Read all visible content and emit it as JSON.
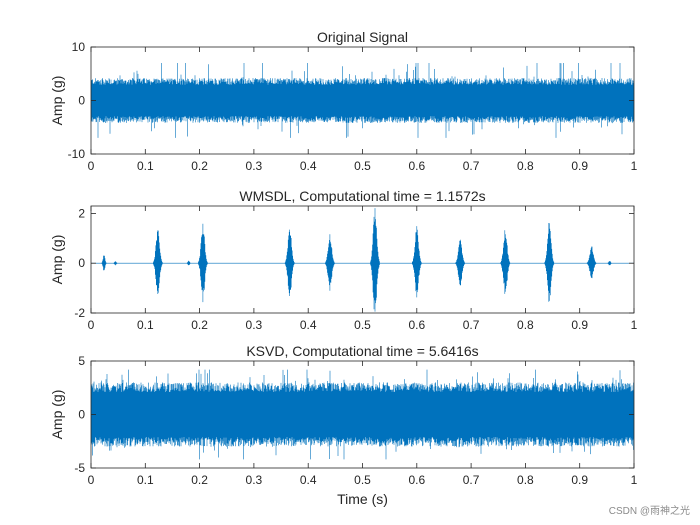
{
  "chart_data": [
    {
      "type": "line",
      "title": "Original Signal",
      "xlabel": "",
      "ylabel": "Amp (g)",
      "xlim": [
        0,
        1
      ],
      "ylim": [
        -10,
        10
      ],
      "xticks": [
        "0",
        "0.1",
        "0.2",
        "0.3",
        "0.4",
        "0.5",
        "0.6",
        "0.7",
        "0.8",
        "0.9",
        "1"
      ],
      "yticks": [
        "-10",
        "0",
        "10"
      ],
      "ytick_values": [
        -10,
        0,
        10
      ],
      "grid": false,
      "color": "#0072BD",
      "series": [
        {
          "name": "original",
          "description": "dense broadband vibration signal, amplitude mostly within ±5 g, peaks near ±7 g"
        }
      ],
      "envelope": {
        "typical_amplitude": 4.2,
        "peak_amplitude": 7
      }
    },
    {
      "type": "line",
      "title": "WMSDL, Computational time = 1.1572s",
      "xlabel": "",
      "ylabel": "Amp (g)",
      "xlim": [
        0,
        1
      ],
      "ylim": [
        -2,
        2.3
      ],
      "xticks": [
        "0",
        "0.1",
        "0.2",
        "0.3",
        "0.4",
        "0.5",
        "0.6",
        "0.7",
        "0.8",
        "0.9",
        "1"
      ],
      "yticks": [
        "-2",
        "0",
        "2"
      ],
      "ytick_values": [
        -2,
        0,
        2
      ],
      "grid": false,
      "color": "#0072BD",
      "impulses": [
        {
          "t": 0.024,
          "peak": 0.35
        },
        {
          "t": 0.045,
          "peak": 0.08
        },
        {
          "t": 0.123,
          "peak": 1.4
        },
        {
          "t": 0.18,
          "peak": 0.1
        },
        {
          "t": 0.206,
          "peak": 1.6
        },
        {
          "t": 0.366,
          "peak": 1.5
        },
        {
          "t": 0.44,
          "peak": 1.2
        },
        {
          "t": 0.523,
          "peak": 2.3
        },
        {
          "t": 0.6,
          "peak": 1.5
        },
        {
          "t": 0.68,
          "peak": 1.0
        },
        {
          "t": 0.763,
          "peak": 1.4
        },
        {
          "t": 0.844,
          "peak": 1.7
        },
        {
          "t": 0.922,
          "peak": 0.7
        },
        {
          "t": 0.955,
          "peak": 0.1
        }
      ]
    },
    {
      "type": "line",
      "title": "KSVD, Computational time = 5.6416s",
      "xlabel": "Time (s)",
      "ylabel": "Amp (g)",
      "xlim": [
        0,
        1
      ],
      "ylim": [
        -5,
        5
      ],
      "xticks": [
        "0",
        "0.1",
        "0.2",
        "0.3",
        "0.4",
        "0.5",
        "0.6",
        "0.7",
        "0.8",
        "0.9",
        "1"
      ],
      "yticks": [
        "-5",
        "0",
        "5"
      ],
      "ytick_values": [
        -5,
        0,
        5
      ],
      "grid": false,
      "color": "#0072BD",
      "series": [
        {
          "name": "ksvd",
          "description": "dense reconstructed signal, amplitude mostly within ±3 g, peaks near ±4 g"
        }
      ],
      "envelope": {
        "typical_amplitude": 3.0,
        "peak_amplitude": 4.2
      }
    }
  ],
  "watermark": "CSDN @雨神之光"
}
